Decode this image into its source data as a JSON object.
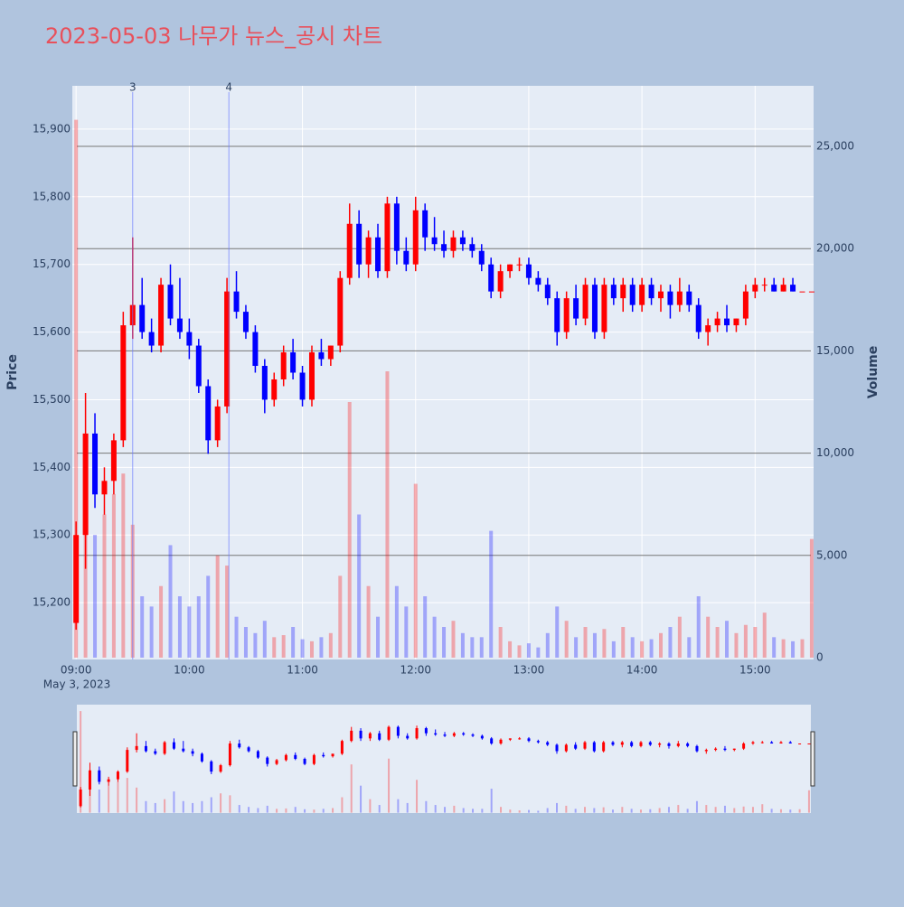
{
  "chart_data": {
    "type": "candlestick",
    "title": "2023-05-03 나무가 뉴스_공시 차트",
    "y_title": "Price",
    "y2_title": "Volume",
    "increasing_color": "#ff0000",
    "decreasing_color": "#0000ff",
    "x": [
      "09:00",
      "09:05",
      "09:10",
      "09:15",
      "09:20",
      "09:25",
      "09:30",
      "09:35",
      "09:40",
      "09:45",
      "09:50",
      "09:55",
      "10:00",
      "10:05",
      "10:10",
      "10:15",
      "10:20",
      "10:25",
      "10:30",
      "10:35",
      "10:40",
      "10:45",
      "10:50",
      "10:55",
      "11:00",
      "11:05",
      "11:10",
      "11:15",
      "11:20",
      "11:25",
      "11:30",
      "11:35",
      "11:40",
      "11:45",
      "11:50",
      "11:55",
      "12:00",
      "12:05",
      "12:10",
      "12:15",
      "12:20",
      "12:25",
      "12:30",
      "12:35",
      "12:40",
      "12:45",
      "12:50",
      "12:55",
      "13:00",
      "13:05",
      "13:10",
      "13:15",
      "13:20",
      "13:25",
      "13:30",
      "13:35",
      "13:40",
      "13:45",
      "13:50",
      "13:55",
      "14:00",
      "14:05",
      "14:10",
      "14:15",
      "14:20",
      "14:25",
      "14:30",
      "14:35",
      "14:40",
      "14:45",
      "14:50",
      "14:55",
      "15:00",
      "15:05",
      "15:10",
      "15:15",
      "15:20",
      "15:25",
      "15:30"
    ],
    "open": [
      15170,
      15300,
      15450,
      15360,
      15380,
      15440,
      15610,
      15640,
      15600,
      15580,
      15670,
      15620,
      15600,
      15580,
      15520,
      15440,
      15490,
      15660,
      15630,
      15600,
      15550,
      15500,
      15530,
      15570,
      15540,
      15500,
      15570,
      15560,
      15580,
      15680,
      15760,
      15700,
      15740,
      15690,
      15790,
      15720,
      15700,
      15780,
      15740,
      15730,
      15720,
      15740,
      15730,
      15720,
      15700,
      15660,
      15690,
      15700,
      15700,
      15680,
      15670,
      15650,
      15600,
      15650,
      15620,
      15670,
      15600,
      15670,
      15650,
      15670,
      15640,
      15670,
      15650,
      15660,
      15640,
      15660,
      15640,
      15600,
      15610,
      15620,
      15610,
      15620,
      15660,
      15670,
      15670,
      15660,
      15670,
      15660,
      15660
    ],
    "high": [
      15320,
      15510,
      15480,
      15400,
      15450,
      15630,
      15740,
      15680,
      15620,
      15680,
      15700,
      15680,
      15620,
      15590,
      15530,
      15500,
      15680,
      15690,
      15640,
      15610,
      15560,
      15540,
      15580,
      15590,
      15550,
      15580,
      15590,
      15580,
      15690,
      15790,
      15780,
      15750,
      15760,
      15800,
      15800,
      15740,
      15800,
      15790,
      15770,
      15750,
      15750,
      15750,
      15740,
      15730,
      15710,
      15700,
      15700,
      15710,
      15710,
      15690,
      15680,
      15660,
      15660,
      15670,
      15680,
      15680,
      15680,
      15680,
      15680,
      15680,
      15680,
      15680,
      15670,
      15670,
      15680,
      15670,
      15650,
      15620,
      15630,
      15640,
      15620,
      15670,
      15680,
      15680,
      15680,
      15680,
      15680,
      15660,
      15660
    ],
    "low": [
      15160,
      15250,
      15340,
      15330,
      15360,
      15430,
      15590,
      15590,
      15570,
      15570,
      15610,
      15590,
      15560,
      15510,
      15420,
      15430,
      15480,
      15620,
      15590,
      15540,
      15480,
      15490,
      15520,
      15530,
      15490,
      15490,
      15550,
      15550,
      15570,
      15670,
      15680,
      15680,
      15680,
      15680,
      15700,
      15690,
      15690,
      15720,
      15720,
      15710,
      15710,
      15720,
      15710,
      15690,
      15650,
      15650,
      15680,
      15690,
      15670,
      15660,
      15640,
      15580,
      15590,
      15610,
      15610,
      15590,
      15590,
      15640,
      15630,
      15630,
      15630,
      15640,
      15630,
      15620,
      15630,
      15630,
      15590,
      15580,
      15600,
      15600,
      15600,
      15610,
      15650,
      15660,
      15660,
      15660,
      15660,
      15660,
      15660
    ],
    "close": [
      15300,
      15450,
      15360,
      15380,
      15440,
      15610,
      15640,
      15600,
      15580,
      15670,
      15620,
      15600,
      15580,
      15520,
      15440,
      15490,
      15660,
      15630,
      15600,
      15550,
      15500,
      15530,
      15570,
      15540,
      15500,
      15570,
      15560,
      15580,
      15680,
      15760,
      15700,
      15740,
      15690,
      15790,
      15720,
      15700,
      15780,
      15740,
      15730,
      15720,
      15740,
      15730,
      15720,
      15700,
      15660,
      15690,
      15700,
      15700,
      15680,
      15670,
      15650,
      15600,
      15650,
      15620,
      15670,
      15600,
      15670,
      15650,
      15670,
      15640,
      15670,
      15650,
      15660,
      15640,
      15660,
      15640,
      15600,
      15610,
      15620,
      15610,
      15620,
      15660,
      15670,
      15670,
      15660,
      15670,
      15660,
      15660,
      15660
    ],
    "volume": [
      26300,
      9000,
      6000,
      7000,
      8000,
      9000,
      6500,
      3000,
      2500,
      3500,
      5500,
      3000,
      2500,
      3000,
      4000,
      5000,
      4500,
      2000,
      1500,
      1200,
      1800,
      1000,
      1100,
      1500,
      900,
      800,
      1000,
      1200,
      4000,
      12500,
      7000,
      3500,
      2000,
      14000,
      3500,
      2500,
      8500,
      3000,
      2000,
      1500,
      1800,
      1200,
      1000,
      1000,
      6200,
      1500,
      800,
      600,
      700,
      500,
      1200,
      2500,
      1800,
      1000,
      1500,
      1200,
      1400,
      800,
      1500,
      1000,
      800,
      900,
      1200,
      1500,
      2000,
      1000,
      3000,
      2000,
      1500,
      1800,
      1200,
      1600,
      1500,
      2200,
      1000,
      900,
      800,
      900,
      5800
    ],
    "xlim": [
      "08:58",
      "15:31"
    ],
    "xticks": [
      "09:00",
      "10:00",
      "11:00",
      "12:00",
      "13:00",
      "14:00",
      "15:00"
    ],
    "x_date_label": "May 3, 2023",
    "ylim": [
      15116,
      15964
    ],
    "yticks": [
      {
        "value": 15200,
        "label": "15,200"
      },
      {
        "value": 15300,
        "label": "15,300"
      },
      {
        "value": 15400,
        "label": "15,400"
      },
      {
        "value": 15500,
        "label": "15,500"
      },
      {
        "value": 15600,
        "label": "15,600"
      },
      {
        "value": 15700,
        "label": "15,700"
      },
      {
        "value": 15800,
        "label": "15,800"
      },
      {
        "value": 15900,
        "label": "15,900"
      }
    ],
    "y2lim": [
      -90,
      27960
    ],
    "y2ticks": [
      0,
      {
        "value": 5000,
        "label": "5,000"
      },
      {
        "value": 10000,
        "label": "10,000"
      },
      {
        "value": 15000,
        "label": "15,000"
      },
      {
        "value": 20000,
        "label": "20,000"
      },
      {
        "value": 25000,
        "label": "25,000"
      }
    ],
    "annotations": [
      {
        "x": "09:30",
        "text": "3"
      },
      {
        "x": "10:21",
        "text": "4"
      }
    ],
    "grid": true,
    "rangeslider": true
  }
}
